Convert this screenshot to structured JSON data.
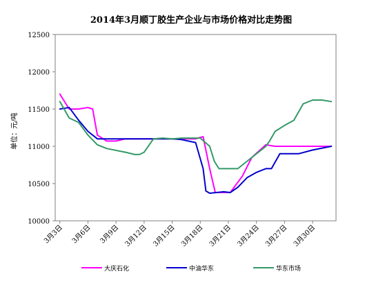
{
  "chart_data": {
    "type": "line",
    "title": "2014年3月顺丁胶生产企业与市场价格对比走势图",
    "ylabel": "单位：元/吨",
    "xlabel": "",
    "ylim": [
      10000,
      12500
    ],
    "yticks": [
      10000,
      10500,
      11000,
      11500,
      12000,
      12500
    ],
    "x_tick_labels": [
      "3月3日",
      "3月6日",
      "3月9日",
      "3月12日",
      "3月15日",
      "3月18日",
      "3月21日",
      "3月24日",
      "3月27日",
      "3月30日"
    ],
    "x_tick_days": [
      3,
      6,
      9,
      12,
      15,
      18,
      21,
      24,
      27,
      30
    ],
    "xlim": [
      2.5,
      32.5
    ],
    "grid": false,
    "legend_position": "bottom",
    "series": [
      {
        "name": "大庆石化",
        "color": "#ff00ff",
        "points": [
          [
            3,
            11700
          ],
          [
            4,
            11500
          ],
          [
            5,
            11500
          ],
          [
            6,
            11520
          ],
          [
            6.5,
            11500
          ],
          [
            7,
            11150
          ],
          [
            8,
            11070
          ],
          [
            9,
            11070
          ],
          [
            10,
            11100
          ],
          [
            13,
            11100
          ],
          [
            15,
            11100
          ],
          [
            17.5,
            11100
          ],
          [
            18.3,
            11130
          ],
          [
            19,
            10700
          ],
          [
            19.6,
            10380
          ],
          [
            20.5,
            10380
          ],
          [
            21.2,
            10380
          ],
          [
            22.5,
            10600
          ],
          [
            23.5,
            10850
          ],
          [
            25,
            11020
          ],
          [
            26,
            11000
          ],
          [
            32,
            11000
          ]
        ]
      },
      {
        "name": "中油华东",
        "color": "#0000cc",
        "points": [
          [
            3,
            11500
          ],
          [
            4,
            11520
          ],
          [
            5,
            11350
          ],
          [
            6,
            11200
          ],
          [
            7,
            11100
          ],
          [
            13,
            11100
          ],
          [
            15,
            11100
          ],
          [
            16,
            11090
          ],
          [
            17.5,
            11050
          ],
          [
            18.3,
            10700
          ],
          [
            18.6,
            10400
          ],
          [
            19,
            10370
          ],
          [
            20.5,
            10390
          ],
          [
            21.2,
            10380
          ],
          [
            22,
            10450
          ],
          [
            23,
            10580
          ],
          [
            24,
            10650
          ],
          [
            25,
            10700
          ],
          [
            25.6,
            10700
          ],
          [
            26.5,
            10900
          ],
          [
            27.5,
            10900
          ],
          [
            28.5,
            10900
          ],
          [
            30,
            10950
          ],
          [
            32,
            11000
          ]
        ]
      },
      {
        "name": "华东市场",
        "color": "#339966",
        "points": [
          [
            3,
            11600
          ],
          [
            4,
            11380
          ],
          [
            5,
            11320
          ],
          [
            6,
            11150
          ],
          [
            7,
            11020
          ],
          [
            8,
            10970
          ],
          [
            10,
            10920
          ],
          [
            11,
            10890
          ],
          [
            11.5,
            10890
          ],
          [
            12,
            10920
          ],
          [
            13,
            11100
          ],
          [
            14,
            11110
          ],
          [
            15,
            11100
          ],
          [
            16,
            11110
          ],
          [
            17,
            11110
          ],
          [
            18,
            11110
          ],
          [
            19,
            11000
          ],
          [
            19.5,
            10800
          ],
          [
            20,
            10700
          ],
          [
            21,
            10700
          ],
          [
            22,
            10700
          ],
          [
            23,
            10800
          ],
          [
            24,
            10900
          ],
          [
            25,
            11000
          ],
          [
            25.4,
            11070
          ],
          [
            26,
            11200
          ],
          [
            27,
            11280
          ],
          [
            28,
            11350
          ],
          [
            29,
            11570
          ],
          [
            30,
            11620
          ],
          [
            31,
            11620
          ],
          [
            32,
            11600
          ]
        ]
      }
    ]
  }
}
